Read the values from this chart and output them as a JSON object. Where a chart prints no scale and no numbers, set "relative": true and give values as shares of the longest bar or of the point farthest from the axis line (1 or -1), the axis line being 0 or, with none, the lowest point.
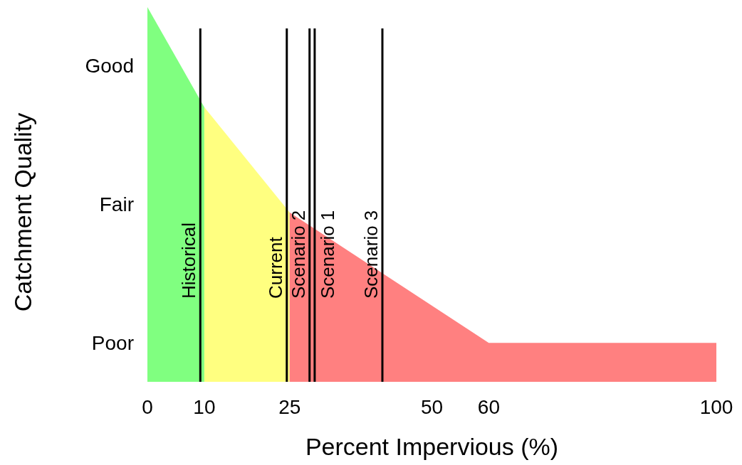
{
  "chart_data": {
    "type": "area",
    "xlabel": "Percent Impervious (%)",
    "ylabel": "Catchment Quality",
    "relative": true,
    "series": [
      {
        "x": [
          0,
          10
        ],
        "values": [
          1,
          0.733
        ],
        "color": "#80ff80"
      },
      {
        "x": [
          10,
          25
        ],
        "values": [
          0.733,
          0.452
        ],
        "color": "#ffff80"
      },
      {
        "x": [
          25,
          60,
          100
        ],
        "values": [
          0.452,
          0.104,
          0.104
        ],
        "color": "#ff8080"
      }
    ],
    "xlim": [
      0,
      100
    ],
    "xticks": [
      0,
      10,
      25,
      50,
      60,
      100
    ],
    "annotations": [
      "Good",
      "Fair",
      "Poor"
    ],
    "ref_lines": [
      {
        "axis": "x",
        "value": 9.3,
        "label": "Historical",
        "color": "#000000"
      },
      {
        "axis": "x",
        "value": 24.5,
        "label": "Current",
        "color": "#000000"
      },
      {
        "axis": "x",
        "value": 28.5,
        "label": "Scenario 2",
        "color": "#000000"
      },
      {
        "axis": "x",
        "value": 29.4,
        "label": "Scenario 1",
        "color": "#000000"
      },
      {
        "axis": "x",
        "value": 41.3,
        "label": "Scenario 3",
        "color": "#000000"
      }
    ],
    "grid": false
  }
}
